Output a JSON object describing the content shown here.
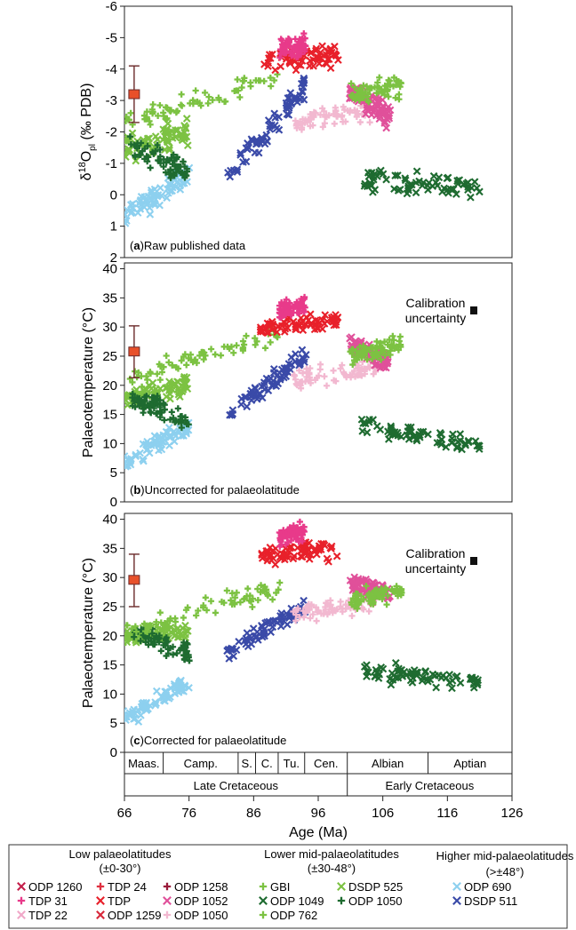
{
  "panels": [
    {
      "letter": "a",
      "label": "Raw published data",
      "ylabel_main": "δ",
      "ylabel_sup": "18",
      "ylabel_mid": "O",
      "ylabel_sub": "pl",
      "ylabel_end": " (‰ PDB)",
      "yticks": [
        "-6",
        "-5",
        "-4",
        "-3",
        "-2",
        "-1",
        "0",
        "1",
        "2"
      ],
      "ylim": [
        2,
        -6
      ],
      "reversed": true,
      "errorbar": {
        "x": 67.5,
        "y": -3.2,
        "lo": -4.1,
        "hi": -2.3
      },
      "calibration": null
    },
    {
      "letter": "b",
      "label": "Uncorrected for palaeolatitude",
      "ylabel": "Palaeotemperature (°C)",
      "yticks": [
        "0",
        "5",
        "10",
        "15",
        "20",
        "25",
        "30",
        "35",
        "40"
      ],
      "ylim": [
        0,
        41
      ],
      "reversed": false,
      "errorbar": {
        "x": 67.5,
        "y": 25.8,
        "lo": 21.3,
        "hi": 30.2
      },
      "calibration": {
        "line1": "Calibration",
        "line2": "uncertainty",
        "value": 35.2
      }
    },
    {
      "letter": "c",
      "label": "Corrected for palaeolatitude",
      "ylabel": "Palaeotemperature (°C)",
      "yticks": [
        "0",
        "5",
        "10",
        "15",
        "20",
        "25",
        "30",
        "35",
        "40"
      ],
      "ylim": [
        0,
        41
      ],
      "reversed": false,
      "errorbar": {
        "x": 67.5,
        "y": 29.6,
        "lo": 25.0,
        "hi": 34.0
      },
      "calibration": {
        "line1": "Calibration",
        "line2": "uncertainty",
        "value": 34.8
      }
    }
  ],
  "stages": [
    {
      "name": "Maas.",
      "from": 66,
      "to": 72
    },
    {
      "name": "Camp.",
      "from": 72,
      "to": 83.6
    },
    {
      "name": "S.",
      "from": 83.6,
      "to": 86.3
    },
    {
      "name": "C.",
      "from": 86.3,
      "to": 89.8
    },
    {
      "name": "Tu.",
      "from": 89.8,
      "to": 93.9
    },
    {
      "name": "Cen.",
      "from": 93.9,
      "to": 100.5
    },
    {
      "name": "Albian",
      "from": 100.5,
      "to": 113
    },
    {
      "name": "Aptian",
      "from": 113,
      "to": 126
    }
  ],
  "epochs": [
    {
      "name": "Late Cretaceous",
      "from": 66,
      "to": 100.5
    },
    {
      "name": "Early Cretaceous",
      "from": 100.5,
      "to": 126
    }
  ],
  "xaxis": {
    "label": "Age (Ma)",
    "ticks": [
      "66",
      "76",
      "86",
      "96",
      "106",
      "116",
      "126"
    ],
    "xlim": [
      66,
      126
    ]
  },
  "legend": {
    "groups": [
      {
        "title_line1": "Low palaeolatitudes",
        "title_line2": "(±0-30°)"
      },
      {
        "title_line1": "Lower mid-palaeolatitudes",
        "title_line2": "(±30-48°)"
      },
      {
        "title_line1": "Higher mid-palaeolatitudes",
        "title_line2": "(>±48°)"
      }
    ],
    "items": [
      {
        "name": "ODP 1260",
        "marker": "x",
        "color": "#c41e4a"
      },
      {
        "name": "TDP 24",
        "marker": "+",
        "color": "#e03040"
      },
      {
        "name": "ODP 1258",
        "marker": "+",
        "color": "#9a1a3a"
      },
      {
        "name": "TDP 31",
        "marker": "+",
        "color": "#e83a8a"
      },
      {
        "name": "TDP",
        "marker": "x",
        "color": "#e8202a"
      },
      {
        "name": "ODP 1052",
        "marker": "x",
        "color": "#e0509a"
      },
      {
        "name": "TDP 22",
        "marker": "x",
        "color": "#f0a8c8"
      },
      {
        "name": "ODP 1259",
        "marker": "x",
        "color": "#d8283a"
      },
      {
        "name": "ODP 1050",
        "marker": "+",
        "color": "#f2b8d0"
      },
      {
        "name": "GBI",
        "marker": "+",
        "color": "#7cc242"
      },
      {
        "name": "ODP 1049",
        "marker": "x",
        "color": "#1e6b30"
      },
      {
        "name": "ODP 762",
        "marker": "+",
        "color": "#7cc242"
      },
      {
        "name": "DSDP 525",
        "marker": "x",
        "color": "#7cc242"
      },
      {
        "name": "ODP 1050",
        "marker": "+",
        "color": "#1e6b30"
      },
      {
        "name": "ODP 690",
        "marker": "x",
        "color": "#8dd0ef"
      },
      {
        "name": "DSDP 511",
        "marker": "x",
        "color": "#3a4aa8"
      }
    ]
  },
  "chart_data": {
    "type": "scatter",
    "x_unit": "Age (Ma)",
    "clusters": [
      {
        "series": "ODP 690",
        "color": "#8dd0ef",
        "marker": "x",
        "x": [
          66,
          76
        ],
        "temp_a": [
          0.6,
          -0.6
        ],
        "temp_b": [
          7,
          13
        ],
        "temp_c": [
          6,
          12
        ]
      },
      {
        "series": "DSDP 525",
        "color": "#7cc242",
        "marker": "x",
        "x": [
          66,
          76
        ],
        "temp_a": [
          -1.5,
          -2.0
        ],
        "temp_b": [
          18,
          20
        ],
        "temp_c": [
          20,
          21
        ]
      },
      {
        "series": "ODP 1050 (mid)",
        "color": "#1e6b30",
        "marker": "+",
        "x": [
          67,
          76
        ],
        "temp_a": [
          -1.6,
          -0.7
        ],
        "temp_b": [
          18,
          14
        ],
        "temp_c": [
          21,
          17
        ]
      },
      {
        "series": "GBI",
        "color": "#7cc242",
        "marker": "+",
        "x": [
          66,
          90
        ],
        "temp_a": [
          -2.2,
          -3.8
        ],
        "temp_b": [
          21,
          29
        ],
        "temp_c": [
          21,
          28
        ]
      },
      {
        "series": "DSDP 511",
        "color": "#3a4aa8",
        "marker": "x",
        "x": [
          82,
          94
        ],
        "temp_a": [
          -0.5,
          -3.5
        ],
        "temp_b": [
          15,
          25
        ],
        "temp_c": [
          17,
          25
        ]
      },
      {
        "series": "TDP",
        "color": "#e8202a",
        "marker": "x",
        "x": [
          87,
          99
        ],
        "temp_a": [
          -4.2,
          -4.5
        ],
        "temp_b": [
          30,
          31
        ],
        "temp_c": [
          34,
          35
        ]
      },
      {
        "series": "TDP 31",
        "color": "#e83a8a",
        "marker": "+",
        "x": [
          90,
          94
        ],
        "temp_a": [
          -4.6,
          -4.8
        ],
        "temp_b": [
          33,
          34
        ],
        "temp_c": [
          37,
          38
        ]
      },
      {
        "series": "ODP 1050 (low)",
        "color": "#f2b8d0",
        "marker": "+",
        "x": [
          92,
          105
        ],
        "temp_a": [
          -2.2,
          -2.8
        ],
        "temp_b": [
          21,
          23
        ],
        "temp_c": [
          24,
          26
        ]
      },
      {
        "series": "ODP 1052",
        "color": "#e0509a",
        "marker": "x",
        "x": [
          101,
          107
        ],
        "temp_a": [
          -3.3,
          -2.5
        ],
        "temp_b": [
          27,
          24
        ],
        "temp_c": [
          29,
          27
        ]
      },
      {
        "series": "ODP 1049",
        "color": "#1e6b30",
        "marker": "x",
        "x": [
          103,
          121
        ],
        "temp_a": [
          -0.5,
          -0.2
        ],
        "temp_b": [
          13,
          10
        ],
        "temp_c": [
          14,
          12
        ]
      },
      {
        "series": "ODP 762",
        "color": "#7cc242",
        "marker": "+",
        "x": [
          101,
          109
        ],
        "temp_a": [
          -3.2,
          -3.4
        ],
        "temp_b": [
          25,
          27
        ],
        "temp_c": [
          26,
          28
        ]
      }
    ]
  }
}
